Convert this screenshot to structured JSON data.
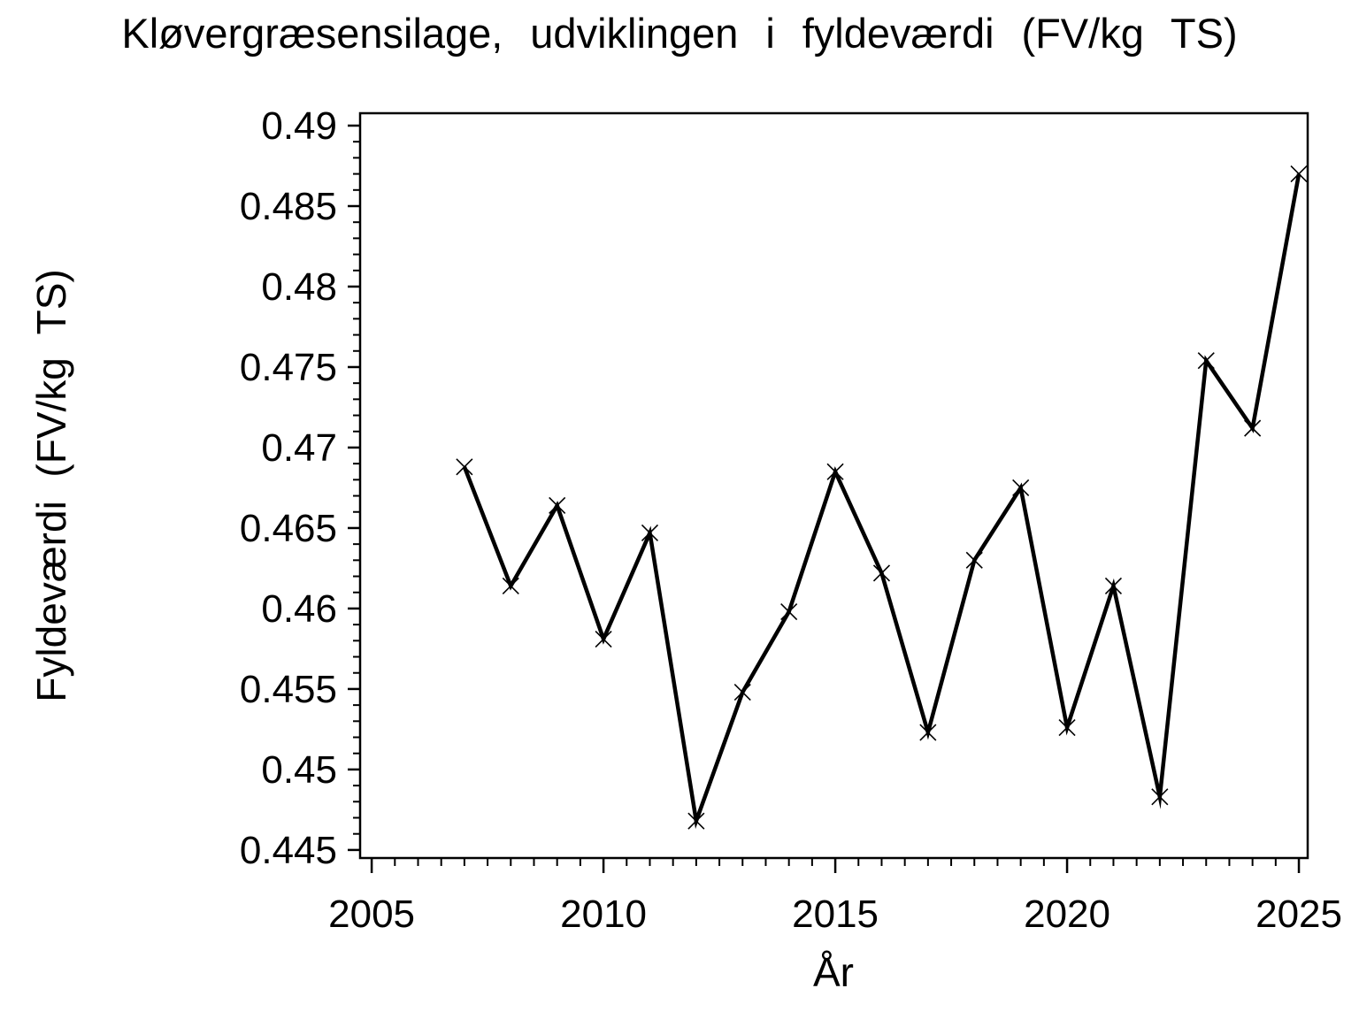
{
  "title": "Kløvergræsensilage, udviklingen i fyldeværdi (FV/kg TS)",
  "chart_data": {
    "type": "line",
    "title": "Kløvergræsensilage, udviklingen i fyldeværdi (FV/kg TS)",
    "xlabel": "År",
    "ylabel": "Fyldeværdi (FV/kg TS)",
    "x": [
      2007,
      2008,
      2009,
      2010,
      2011,
      2012,
      2013,
      2014,
      2015,
      2016,
      2017,
      2018,
      2019,
      2020,
      2021,
      2022,
      2023,
      2024,
      2025
    ],
    "values": [
      0.4688,
      0.4614,
      0.4664,
      0.4581,
      0.4647,
      0.4468,
      0.4548,
      0.4598,
      0.4685,
      0.4622,
      0.4523,
      0.463,
      0.4675,
      0.4526,
      0.4614,
      0.4483,
      0.4754,
      0.4712,
      0.487
    ],
    "series_name": "Fyldeværdi",
    "marker": "x",
    "line_color": "#000000",
    "background_color": "#ffffff",
    "grid": false,
    "legend": false,
    "xlim": [
      2004.75,
      2025.19
    ],
    "ylim": [
      0.4445,
      0.49077
    ],
    "x_major_ticks": [
      2005,
      2010,
      2015,
      2020,
      2025
    ],
    "x_minor_step": 0.5,
    "y_major_ticks": [
      0.445,
      0.45,
      0.455,
      0.46,
      0.465,
      0.47,
      0.475,
      0.48,
      0.485,
      0.49
    ],
    "y_minor_step": 0.001
  }
}
